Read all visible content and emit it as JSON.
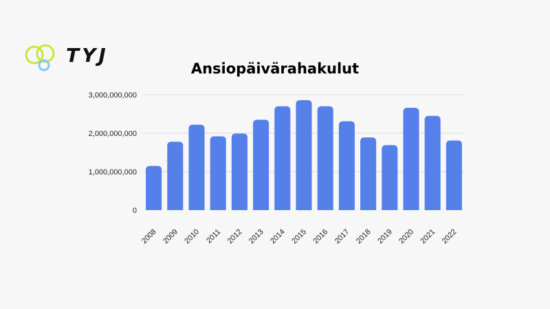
{
  "logo": {
    "text": "TYJ",
    "icon": "three-overlapping-rings-icon",
    "colors": {
      "ring_primary": "#c6e83b",
      "ring_secondary": "#7fc9f2"
    }
  },
  "chart_data": {
    "type": "bar",
    "title": "Ansiopäivärahakulut",
    "xlabel": "",
    "ylabel": "",
    "categories": [
      "2008",
      "2009",
      "2010",
      "2011",
      "2012",
      "2013",
      "2014",
      "2015",
      "2016",
      "2017",
      "2018",
      "2019",
      "2020",
      "2021",
      "2022"
    ],
    "values": [
      1150000000,
      1780000000,
      2220000000,
      1920000000,
      1990000000,
      2350000000,
      2700000000,
      2860000000,
      2700000000,
      2310000000,
      1890000000,
      1690000000,
      2660000000,
      2450000000,
      1810000000
    ],
    "ylim": [
      0,
      3000000000
    ],
    "yticks": [
      0,
      1000000000,
      2000000000,
      3000000000
    ],
    "ytick_labels": [
      "0",
      "1,000,000,000",
      "2,000,000,000",
      "3,000,000,000"
    ],
    "grid": true,
    "bar_color": "#5580ea",
    "grid_color": "#d9d9d9"
  }
}
